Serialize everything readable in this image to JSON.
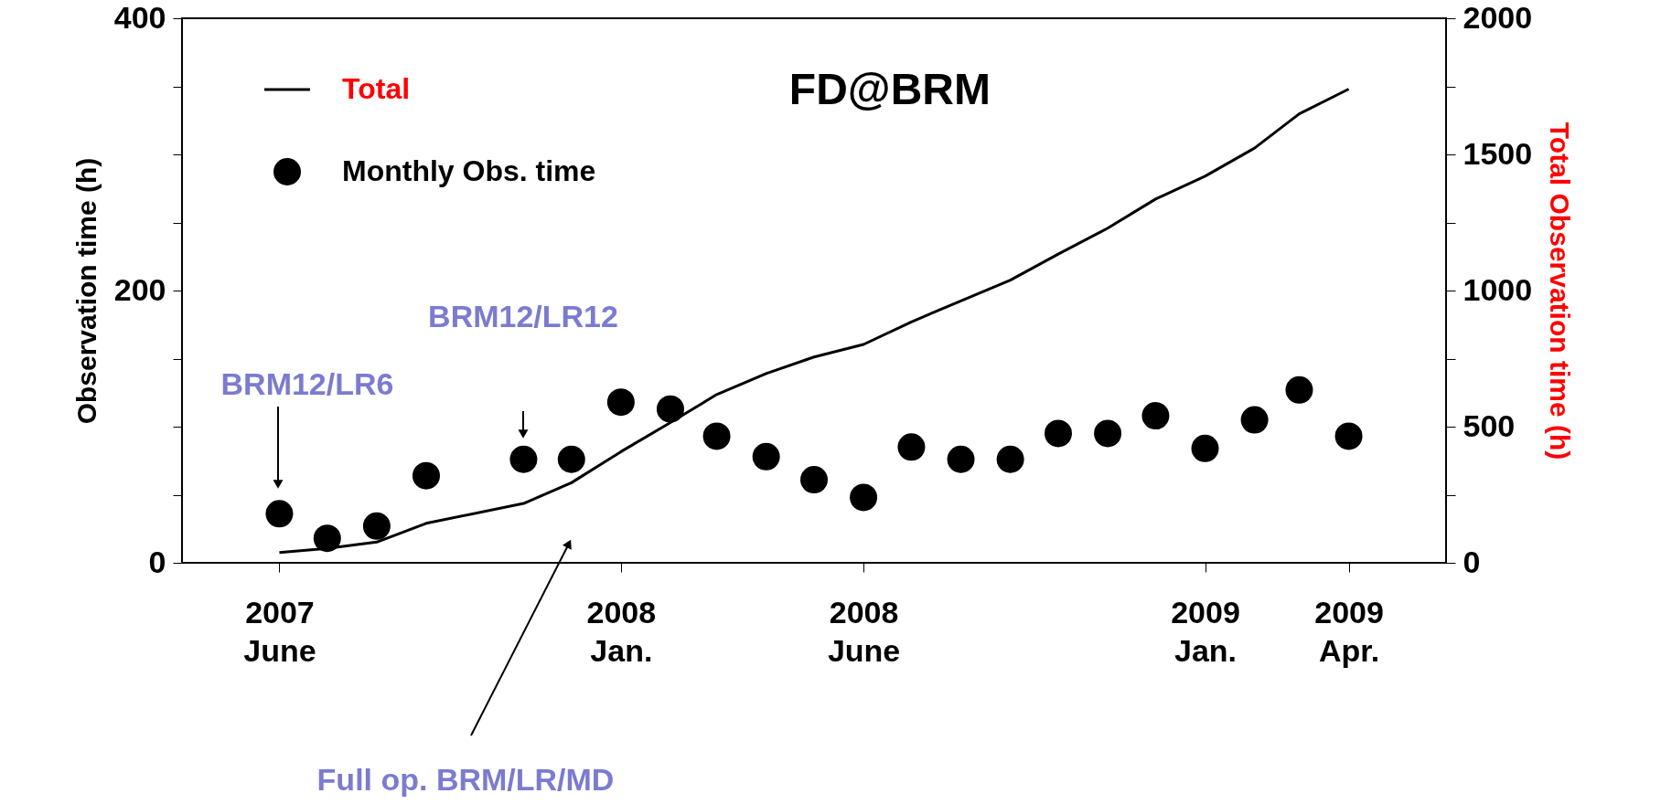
{
  "chart_data": {
    "type": "scatter",
    "title": "FD@BRM",
    "ylabel": "Observation time (h)",
    "y2label": "Total Observation time (h)",
    "x": [
      "2007-06",
      "2007-07",
      "2007-08",
      "2007-09",
      "2007-11",
      "2007-12",
      "2008-01",
      "2008-02",
      "2008-03",
      "2008-04",
      "2008-05",
      "2008-06",
      "2008-07",
      "2008-08",
      "2008-09",
      "2008-10",
      "2008-11",
      "2008-12",
      "2009-01",
      "2009-02",
      "2009-03",
      "2009-04"
    ],
    "series": [
      {
        "name": "Total",
        "type": "line",
        "axis": "y2",
        "color": "#000000",
        "values": [
          38,
          53,
          76,
          145,
          218,
          294,
          408,
          515,
          618,
          695,
          756,
          802,
          885,
          962,
          1038,
          1134,
          1229,
          1336,
          1420,
          1523,
          1649,
          1740
        ]
      },
      {
        "name": "Monthly Obs. time",
        "marker": "circle",
        "color": "#000000",
        "values": [
          36,
          18,
          27,
          64,
          76,
          76,
          118,
          113,
          93,
          78,
          61,
          48,
          85,
          76,
          76,
          95,
          95,
          108,
          84,
          105,
          127,
          93
        ]
      }
    ],
    "xlim": [
      "2007-04",
      "2009-06"
    ],
    "xticks": [
      {
        "value": "2007-06",
        "label": "2007\nJune"
      },
      {
        "value": "2008-01",
        "label": "2008\nJan."
      },
      {
        "value": "2008-06",
        "label": "2008\nJune"
      },
      {
        "value": "2009-01",
        "label": "2009\nJan."
      },
      {
        "value": "2009-04",
        "label": "2009\nApr."
      }
    ],
    "ylim": [
      0,
      400
    ],
    "yticks": [
      0,
      {
        "value": 50,
        "label": null
      },
      {
        "value": 100,
        "label": null
      },
      {
        "value": 150,
        "label": null
      },
      200,
      {
        "value": 250,
        "label": null
      },
      {
        "value": 300,
        "label": null
      },
      {
        "value": 350,
        "label": null
      },
      400
    ],
    "y2lim": [
      0,
      2000
    ],
    "y2ticks": [
      0,
      {
        "value": 250,
        "label": null
      },
      500,
      {
        "value": 750,
        "label": null
      },
      1000,
      {
        "value": 1250,
        "label": null
      },
      1500,
      {
        "value": 1750,
        "label": null
      },
      2000
    ],
    "annotations": [
      "BRM12/LR6",
      "BRM12/LR12",
      "Full op. BRM/LR/MD"
    ],
    "legend": "top left",
    "grid": false
  }
}
